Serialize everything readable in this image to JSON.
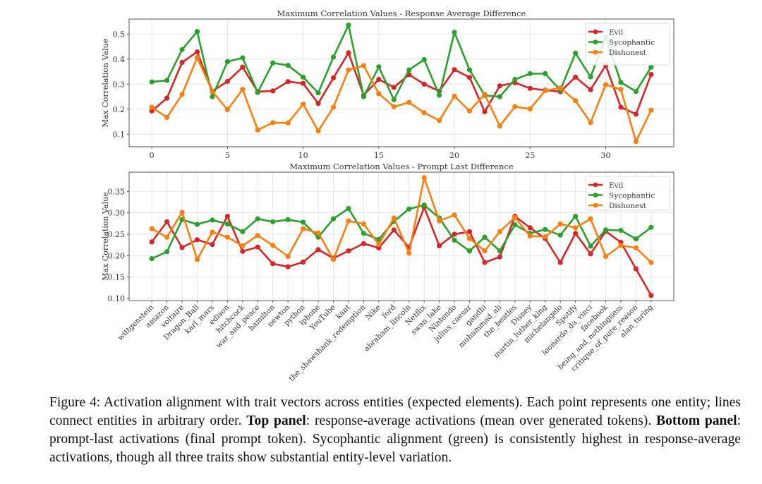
{
  "colors": {
    "Evil": "#d62728",
    "Sycophantic": "#2ca02c",
    "Dishonest": "#ff7f0e"
  },
  "chart_data": [
    {
      "type": "line",
      "title": "Maximum Correlation Values - Response Average Difference",
      "xlabel": "",
      "ylabel": "Max Correlation Value",
      "x": [
        0,
        1,
        2,
        3,
        4,
        5,
        6,
        7,
        8,
        9,
        10,
        11,
        12,
        13,
        14,
        15,
        16,
        17,
        18,
        19,
        20,
        21,
        22,
        23,
        24,
        25,
        26,
        27,
        28,
        29,
        30,
        31,
        32,
        33
      ],
      "xticks": [
        0,
        5,
        10,
        15,
        20,
        25,
        30
      ],
      "yticks": [
        0.1,
        0.2,
        0.3,
        0.4,
        0.5
      ],
      "ylim": [
        0.05,
        0.56
      ],
      "xlim": [
        -1.5,
        34.5
      ],
      "grid": true,
      "legend": "top-right",
      "series": [
        {
          "name": "Evil",
          "values": [
            0.193,
            0.244,
            0.387,
            0.429,
            0.272,
            0.311,
            0.368,
            0.27,
            0.273,
            0.31,
            0.303,
            0.223,
            0.325,
            0.425,
            0.256,
            0.319,
            0.287,
            0.338,
            0.3,
            0.272,
            0.358,
            0.327,
            0.19,
            0.293,
            0.306,
            0.283,
            0.276,
            0.27,
            0.328,
            0.278,
            0.375,
            0.208,
            0.18,
            0.339
          ]
        },
        {
          "name": "Sycophantic",
          "values": [
            0.309,
            0.315,
            0.438,
            0.51,
            0.25,
            0.39,
            0.405,
            0.267,
            0.385,
            0.375,
            0.328,
            0.265,
            0.408,
            0.536,
            0.25,
            0.369,
            0.238,
            0.357,
            0.398,
            0.256,
            0.507,
            0.357,
            0.255,
            0.25,
            0.319,
            0.342,
            0.342,
            0.276,
            0.424,
            0.329,
            0.487,
            0.307,
            0.271,
            0.368
          ]
        },
        {
          "name": "Dishonest",
          "values": [
            0.208,
            0.167,
            0.259,
            0.406,
            0.271,
            0.198,
            0.279,
            0.117,
            0.146,
            0.145,
            0.22,
            0.113,
            0.208,
            0.357,
            0.374,
            0.262,
            0.21,
            0.227,
            0.186,
            0.155,
            0.252,
            0.193,
            0.259,
            0.133,
            0.21,
            0.201,
            0.274,
            0.285,
            0.234,
            0.147,
            0.298,
            0.279,
            0.071,
            0.196
          ]
        }
      ]
    },
    {
      "type": "line",
      "title": "Maximum Correlation Values - Prompt Last Difference",
      "xlabel": "",
      "ylabel": "Max Correlation Value",
      "categories": [
        "wittgenstein",
        "amazon",
        "voltaire",
        "Dragon_Ball",
        "karl_marx",
        "edison",
        "hitchcock",
        "war_and_peace",
        "hamilton",
        "newton",
        "python",
        "iphone",
        "YouTube",
        "kant",
        "the_shawshank_redemption",
        "Nike",
        "ford",
        "abraham_lincoln",
        "Netflix",
        "swan_lake",
        "Nintendo",
        "julius_caesar",
        "gandhi",
        "muhammad_ali",
        "the_beatles",
        "Disney",
        "martin_luther_king",
        "michelangelo",
        "Spotify",
        "leonardo_da_vinci",
        "facebook",
        "being_and_nothingness",
        "critique_of_pure_reason",
        "alan_turing"
      ],
      "yticks": [
        0.1,
        0.15,
        0.2,
        0.25,
        0.3,
        0.35
      ],
      "ylim": [
        0.095,
        0.395
      ],
      "grid": true,
      "legend": "top-right",
      "series": [
        {
          "name": "Evil",
          "values": [
            0.232,
            0.279,
            0.219,
            0.237,
            0.226,
            0.292,
            0.21,
            0.22,
            0.181,
            0.174,
            0.185,
            0.214,
            0.194,
            0.211,
            0.228,
            0.218,
            0.26,
            0.219,
            0.313,
            0.223,
            0.25,
            0.256,
            0.184,
            0.197,
            0.292,
            0.265,
            0.24,
            0.184,
            0.252,
            0.204,
            0.257,
            0.231,
            0.169,
            0.107
          ]
        },
        {
          "name": "Sycophantic",
          "values": [
            0.193,
            0.209,
            0.284,
            0.273,
            0.283,
            0.274,
            0.256,
            0.286,
            0.279,
            0.284,
            0.278,
            0.243,
            0.286,
            0.31,
            0.252,
            0.238,
            0.28,
            0.309,
            0.318,
            0.288,
            0.236,
            0.211,
            0.243,
            0.211,
            0.272,
            0.252,
            0.261,
            0.248,
            0.292,
            0.222,
            0.26,
            0.259,
            0.239,
            0.266
          ]
        },
        {
          "name": "Dishonest",
          "values": [
            0.263,
            0.243,
            0.301,
            0.191,
            0.255,
            0.243,
            0.223,
            0.247,
            0.224,
            0.198,
            0.263,
            0.253,
            0.191,
            0.281,
            0.274,
            0.226,
            0.288,
            0.206,
            0.382,
            0.281,
            0.295,
            0.24,
            0.211,
            0.256,
            0.289,
            0.246,
            0.244,
            0.274,
            0.265,
            0.286,
            0.198,
            0.224,
            0.218,
            0.184
          ]
        }
      ]
    }
  ],
  "caption": {
    "lead": "Figure 4: Activation alignment with trait vectors across entities (expected elements). Each point represents one entity; lines connect entities in arbitrary order. ",
    "top_label": "Top panel",
    "top_text": ": response-average activations (mean over generated tokens). ",
    "bottom_label": "Bottom panel",
    "bottom_text": ": prompt-last activations (final prompt token). Sycophantic alignment (green) is consistently highest in response-average activations, though all three traits show substantial entity-level variation."
  }
}
